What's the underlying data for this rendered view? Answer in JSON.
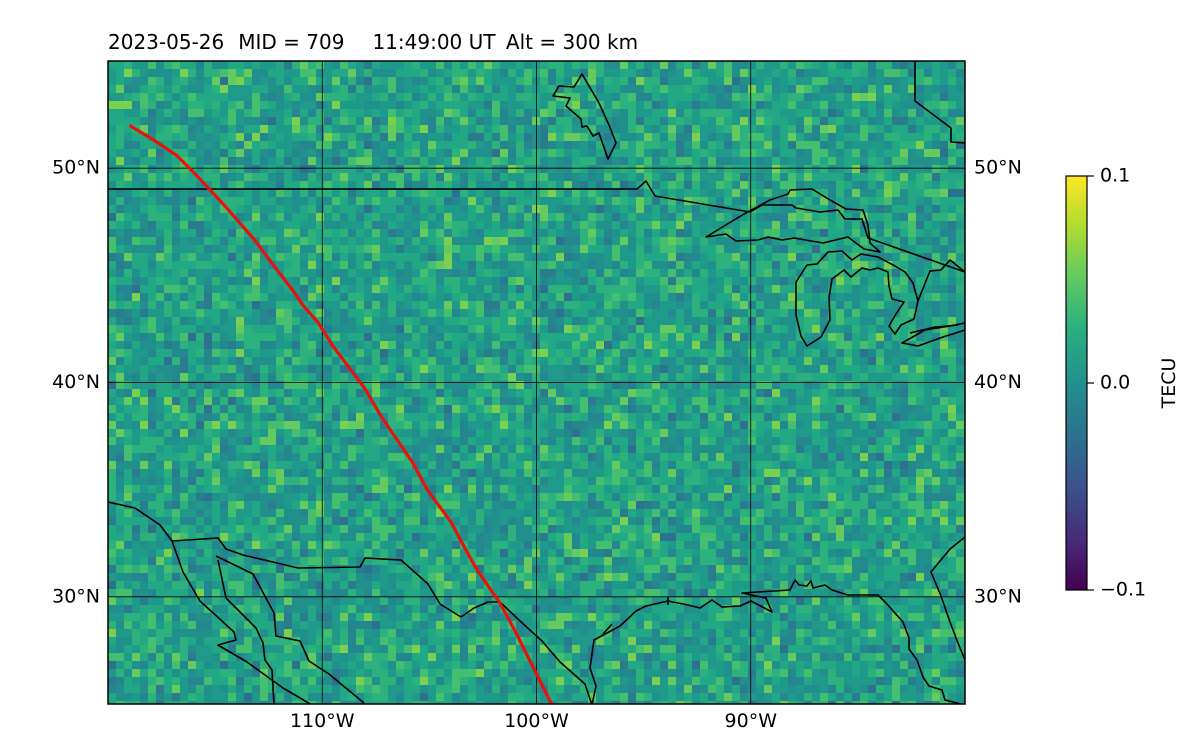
{
  "title": {
    "date": "2023-05-26",
    "mid": "MID = 709",
    "time": "11:49:00  UT",
    "alt": "Alt = 300 km"
  },
  "map": {
    "lon_range": [
      -120,
      -80
    ],
    "lat_range": [
      25,
      55
    ],
    "gridlines": true,
    "lat_ticks": [
      {
        "value": 50,
        "label": "50°N"
      },
      {
        "value": 40,
        "label": "40°N"
      },
      {
        "value": 30,
        "label": "30°N"
      }
    ],
    "lon_ticks": [
      {
        "value": -110,
        "label": "110°W"
      },
      {
        "value": -100,
        "label": "100°W"
      },
      {
        "value": -90,
        "label": "90°W"
      }
    ],
    "field_colormap": "viridis",
    "border_color": "#000000",
    "track_color": "#e8120c",
    "track": [
      [
        -119.0,
        52.0
      ],
      [
        -118.0,
        51.4
      ],
      [
        -116.8,
        50.6
      ],
      [
        -115.9,
        49.7
      ],
      [
        -114.6,
        48.3
      ],
      [
        -113.2,
        46.7
      ],
      [
        -112.3,
        45.5
      ],
      [
        -111.3,
        44.2
      ],
      [
        -110.9,
        43.6
      ],
      [
        -110.2,
        42.8
      ],
      [
        -109.5,
        41.7
      ],
      [
        -108.6,
        40.5
      ],
      [
        -108.0,
        39.7
      ],
      [
        -107.3,
        38.5
      ],
      [
        -106.7,
        37.6
      ],
      [
        -105.8,
        36.3
      ],
      [
        -105.1,
        35.0
      ],
      [
        -104.0,
        33.5
      ],
      [
        -103.3,
        32.2
      ],
      [
        -102.8,
        31.3
      ],
      [
        -101.7,
        29.7
      ],
      [
        -101.0,
        28.4
      ],
      [
        -100.2,
        26.8
      ],
      [
        -99.3,
        25.0
      ]
    ]
  },
  "colorbar": {
    "label": "TECU",
    "ticks": [
      {
        "value": 0.1,
        "label": "0.1"
      },
      {
        "value": 0.0,
        "label": "0.0"
      },
      {
        "value": -0.1,
        "label": "−0.1"
      }
    ]
  }
}
